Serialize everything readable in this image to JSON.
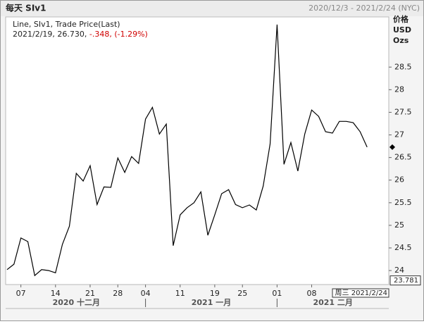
{
  "chart_data": {
    "type": "line",
    "title": "每天 SIv1",
    "date_range": "2020/12/3 - 2021/2/24 (NYC)",
    "legend_series": "Line, SIv1, Trade Price(Last)",
    "legend_values": "2021/2/19, 26.730, ",
    "legend_change": "-.348, (-1.29%)",
    "y_axis_label": [
      "价格",
      "USD",
      "Ozs"
    ],
    "x": [
      "2020/12/3",
      "2020/12/4",
      "2020/12/7",
      "2020/12/8",
      "2020/12/9",
      "2020/12/10",
      "2020/12/11",
      "2020/12/14",
      "2020/12/15",
      "2020/12/16",
      "2020/12/17",
      "2020/12/18",
      "2020/12/21",
      "2020/12/22",
      "2020/12/23",
      "2020/12/24",
      "2020/12/28",
      "2020/12/29",
      "2020/12/30",
      "2020/12/31",
      "2021/1/4",
      "2021/1/5",
      "2021/1/6",
      "2021/1/7",
      "2021/1/8",
      "2021/1/11",
      "2021/1/12",
      "2021/1/13",
      "2021/1/14",
      "2021/1/15",
      "2021/1/19",
      "2021/1/20",
      "2021/1/21",
      "2021/1/22",
      "2021/1/25",
      "2021/1/26",
      "2021/1/27",
      "2021/1/28",
      "2021/1/29",
      "2021/2/1",
      "2021/2/2",
      "2021/2/3",
      "2021/2/4",
      "2021/2/5",
      "2021/2/8",
      "2021/2/9",
      "2021/2/10",
      "2021/2/11",
      "2021/2/12",
      "2021/2/16",
      "2021/2/17",
      "2021/2/18",
      "2021/2/19"
    ],
    "series": [
      {
        "name": "SIv1",
        "color": "#000000",
        "values": [
          24.02,
          24.14,
          24.72,
          24.64,
          23.89,
          24.02,
          24.0,
          23.95,
          24.58,
          24.98,
          26.15,
          25.98,
          26.32,
          25.46,
          25.85,
          25.84,
          26.49,
          26.17,
          26.52,
          26.37,
          27.35,
          27.61,
          27.02,
          27.24,
          24.55,
          25.23,
          25.39,
          25.5,
          25.74,
          24.78,
          25.23,
          25.7,
          25.79,
          25.46,
          25.39,
          25.45,
          25.34,
          25.87,
          26.8,
          29.44,
          26.35,
          26.83,
          26.2,
          27.02,
          27.55,
          27.41,
          27.07,
          27.04,
          27.3,
          27.3,
          27.27,
          27.07,
          26.73
        ]
      }
    ],
    "ylim": [
      23.69,
      29.61
    ],
    "yticks": [
      24,
      24.5,
      25,
      25.5,
      26,
      26.5,
      27,
      27.5,
      28,
      28.5
    ],
    "xticks": [
      {
        "value": "2020/12/7",
        "label": "07"
      },
      {
        "value": "2020/12/14",
        "label": "14"
      },
      {
        "value": "2020/12/21",
        "label": "21"
      },
      {
        "value": "2020/12/28",
        "label": "28"
      },
      {
        "value": "2021/1/4",
        "label": "04"
      },
      {
        "value": "2021/1/11",
        "label": "11"
      },
      {
        "value": "2021/1/19",
        "label": "19"
      },
      {
        "value": "2021/1/25",
        "label": "25"
      },
      {
        "value": "2021/2/1",
        "label": "01"
      },
      {
        "value": "2021/2/8",
        "label": "08"
      }
    ],
    "month_groups": [
      {
        "start": "2020/12/3",
        "label": "2020 十二月"
      },
      {
        "start": "2021/1/4",
        "label": "2021 一月"
      },
      {
        "start": "2021/2/1",
        "label": "2021 二月"
      }
    ],
    "cursor": {
      "date_label": "周三 2021/2/24",
      "value": 23.781
    },
    "grid": false
  }
}
